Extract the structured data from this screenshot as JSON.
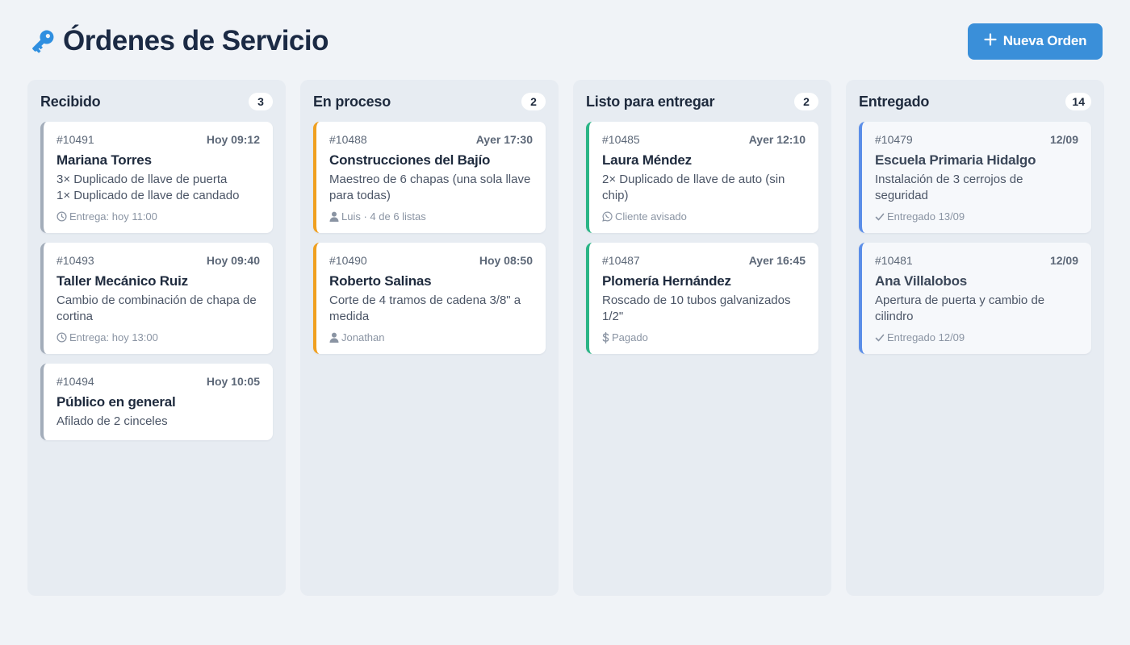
{
  "header": {
    "title": "Órdenes de Servicio",
    "title_icon": "key-icon",
    "new_button_label": "Nueva Orden",
    "new_button_icon": "plus-icon"
  },
  "colors": {
    "accent": "#3a8fd9",
    "received": "#a3adba",
    "in_process": "#f0a020",
    "ready": "#2bb586",
    "delivered": "#5b8ee8"
  },
  "columns": [
    {
      "title": "Recibido",
      "count": "3",
      "cards": [
        {
          "id": "#10491",
          "time": "Hoy 09:12",
          "name": "Mariana Torres",
          "desc": [
            "3× Duplicado de llave de puerta",
            "1× Duplicado de llave de candado"
          ],
          "meta": "Entrega: hoy 11:00",
          "meta_icon": "clock-icon"
        },
        {
          "id": "#10493",
          "time": "Hoy 09:40",
          "name": "Taller Mecánico Ruiz",
          "desc": [
            "Cambio de combinación de chapa de",
            "cortina"
          ],
          "meta": "Entrega: hoy 13:00",
          "meta_icon": "clock-icon"
        },
        {
          "id": "#10494",
          "time": "Hoy 10:05",
          "name": "Público en general",
          "desc": [
            "Afilado de 2 cinceles"
          ]
        }
      ]
    },
    {
      "title": "En proceso",
      "count": "2",
      "cards": [
        {
          "id": "#10488",
          "time": "Ayer 17:30",
          "name": "Construcciones del Bajío",
          "desc": [
            "Maestreo de 6 chapas (una sola llave",
            "para todas)"
          ],
          "meta": "Luis · 4 de 6 listas",
          "meta_icon": "user-icon"
        },
        {
          "id": "#10490",
          "time": "Hoy 08:50",
          "name": "Roberto Salinas",
          "desc": [
            "Corte de 4 tramos de cadena 3/8\" a",
            "medida"
          ],
          "meta": "Jonathan",
          "meta_icon": "user-icon"
        }
      ]
    },
    {
      "title": "Listo para entregar",
      "count": "2",
      "cards": [
        {
          "id": "#10485",
          "time": "Ayer 12:10",
          "name": "Laura Méndez",
          "desc": [
            "2× Duplicado de llave de auto (sin",
            "chip)"
          ],
          "meta": "Cliente avisado",
          "meta_icon": "whatsapp-icon"
        },
        {
          "id": "#10487",
          "time": "Ayer 16:45",
          "name": "Plomería Hernández",
          "desc": [
            "Roscado de 10 tubos galvanizados",
            "1/2\""
          ],
          "meta": "Pagado",
          "meta_icon": "dollar-icon"
        }
      ]
    },
    {
      "title": "Entregado",
      "count": "14",
      "cards": [
        {
          "id": "#10479",
          "time": "12/09",
          "name": "Escuela Primaria Hidalgo",
          "desc": [
            "Instalación de 3 cerrojos de seguridad"
          ],
          "meta": "Entregado 13/09",
          "meta_icon": "check-icon"
        },
        {
          "id": "#10481",
          "time": "12/09",
          "name": "Ana Villalobos",
          "desc": [
            "Apertura de puerta y cambio de",
            "cilindro"
          ],
          "meta": "Entregado 12/09",
          "meta_icon": "check-icon"
        }
      ]
    }
  ]
}
